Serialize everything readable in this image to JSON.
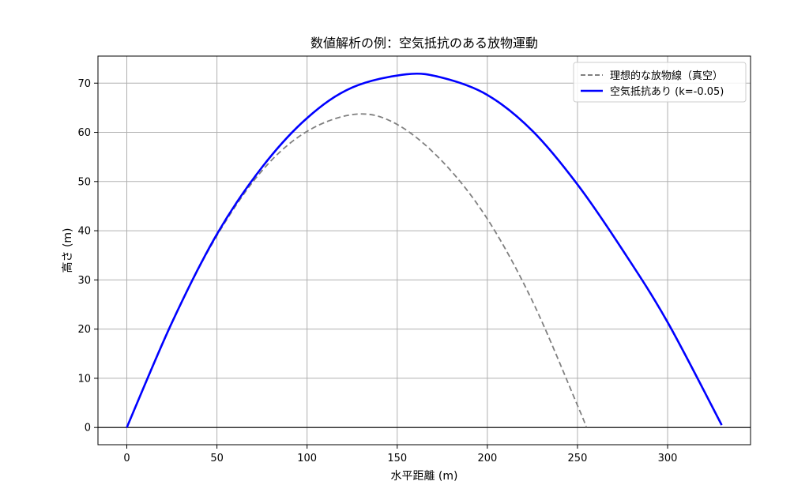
{
  "chart_data": {
    "type": "line",
    "title": "数値解析の例：空気抵抗のある放物運動",
    "xlabel": "水平距離 (m)",
    "ylabel": "高さ (m)",
    "xlim": [
      -16,
      346
    ],
    "ylim": [
      -3.5,
      75.5
    ],
    "xticks": [
      0,
      50,
      100,
      150,
      200,
      250,
      300
    ],
    "yticks": [
      0,
      10,
      20,
      30,
      40,
      50,
      60,
      70
    ],
    "grid": true,
    "legend_position": "top-right",
    "series": [
      {
        "name": "理想的な放物線（真空）",
        "color": "#808080",
        "style": "dashed",
        "x": [
          0,
          25,
          50,
          75,
          100,
          127.5,
          150,
          175,
          200,
          225,
          250,
          255
        ],
        "y": [
          0,
          21.4,
          39.0,
          52.2,
          60.2,
          63.7,
          61.6,
          54.1,
          42.4,
          25.7,
          4.5,
          0
        ]
      },
      {
        "name": "空気抵抗あり (k=-0.05)",
        "color": "#0000ff",
        "style": "solid",
        "x": [
          0,
          25,
          50,
          75,
          100,
          125,
          155,
          175,
          200,
          225,
          250,
          275,
          300,
          330
        ],
        "y": [
          0,
          21.3,
          39.3,
          52.9,
          62.9,
          69.1,
          71.8,
          71.1,
          67.6,
          60.3,
          49.4,
          36.1,
          21.4,
          0.5
        ]
      }
    ],
    "reference_lines": [
      {
        "axis": "y",
        "value": 0,
        "color": "#000000"
      }
    ]
  }
}
